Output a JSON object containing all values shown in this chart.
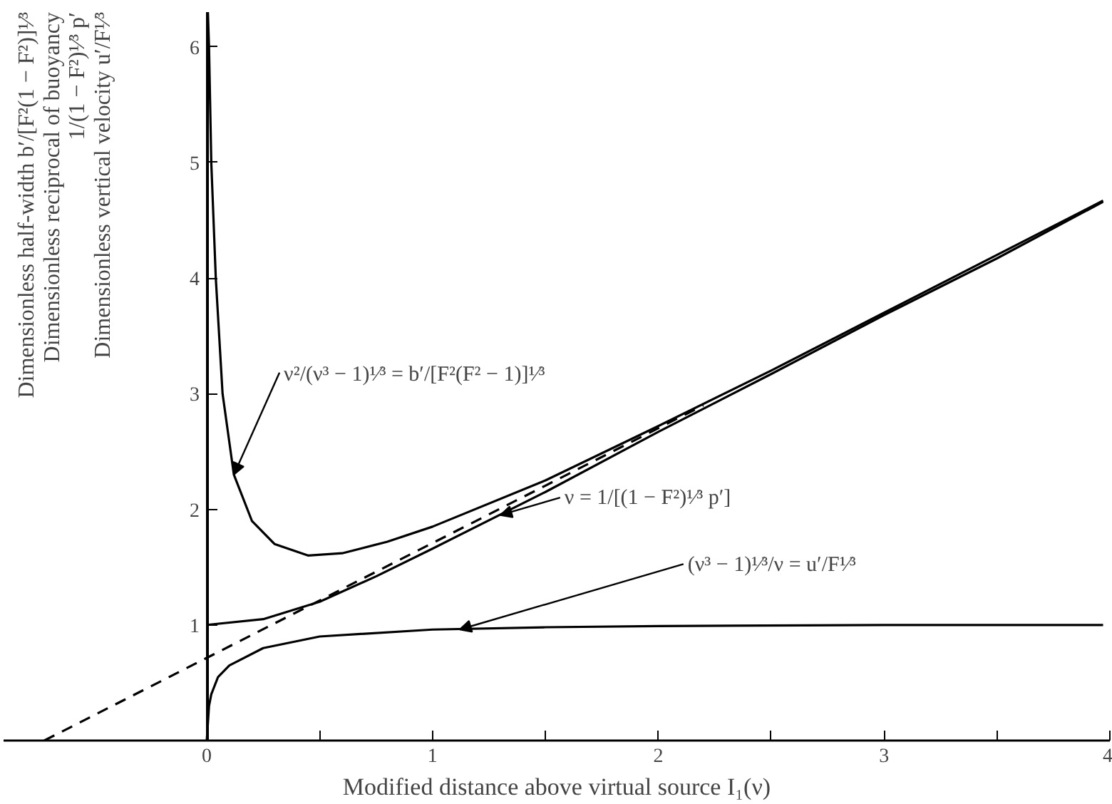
{
  "chart_data": {
    "type": "line",
    "xlabel": "Modified distance above virtual source I₁(ν)",
    "ylabel": "Dimensionless half-width b′/[F²(1 − F²)]¹⁄³\nDimensionless reciprocal of buoyancy\n1/(1 − F²)¹⁄³ p′\nDimensionless vertical velocity u′/F¹⁄³",
    "xlim": [
      -0.9,
      4.0
    ],
    "ylim": [
      0,
      6.3
    ],
    "xticks": [
      0,
      {
        "value": 0.5,
        "label": null
      },
      1,
      {
        "value": 1.5,
        "label": null
      },
      2,
      {
        "value": 2.5,
        "label": null
      },
      3,
      {
        "value": 3.5,
        "label": null
      },
      4
    ],
    "yticks": [
      1,
      2,
      3,
      4,
      5,
      6
    ],
    "series": [
      {
        "color": "#000000",
        "line_style": "solid",
        "x": [
          0.005,
          0.01,
          0.02,
          0.04,
          0.07,
          0.12,
          0.2,
          0.3,
          0.45,
          0.6,
          0.8,
          1.0,
          1.5,
          2.0,
          2.5,
          3.0,
          3.5,
          3.97
        ],
        "values": [
          6.3,
          6.0,
          5.0,
          4.0,
          3.0,
          2.3,
          1.9,
          1.7,
          1.6,
          1.62,
          1.72,
          1.85,
          2.25,
          2.72,
          3.2,
          3.7,
          4.2,
          4.67
        ]
      },
      {
        "color": "#000000",
        "line_style": "solid",
        "x": [
          0,
          0.25,
          0.5,
          0.75,
          1.0,
          1.5,
          2.0,
          2.5,
          3.0,
          3.5,
          3.97
        ],
        "values": [
          1.0,
          1.05,
          1.2,
          1.42,
          1.66,
          2.15,
          2.67,
          3.17,
          3.68,
          4.17,
          4.66
        ]
      },
      {
        "color": "#000000",
        "line_style": "solid",
        "x": [
          0,
          0.01,
          0.02,
          0.05,
          0.1,
          0.25,
          0.5,
          1.0,
          1.5,
          2.0,
          3.0,
          3.97
        ],
        "values": [
          0,
          0.3,
          0.4,
          0.55,
          0.65,
          0.8,
          0.9,
          0.96,
          0.98,
          0.99,
          1.0,
          1.0
        ]
      },
      {
        "color": "#000000",
        "line_style": "dashed",
        "x": [
          -0.72,
          2.2
        ],
        "values": [
          0,
          2.9
        ]
      }
    ],
    "annotations": [
      {
        "text": "ν²/(ν³ − 1)¹⁄³ = b′/[F²(F² − 1)]¹⁄³",
        "x": 0.12,
        "y": 2.3
      },
      {
        "text": "ν = 1/[(1 − F²)¹⁄³ p′]",
        "x": 1.3,
        "y": 1.95
      },
      {
        "text": "(ν³ − 1)¹⁄³/ν = u′/F¹⁄³",
        "x": 1.12,
        "y": 0.96
      }
    ]
  }
}
